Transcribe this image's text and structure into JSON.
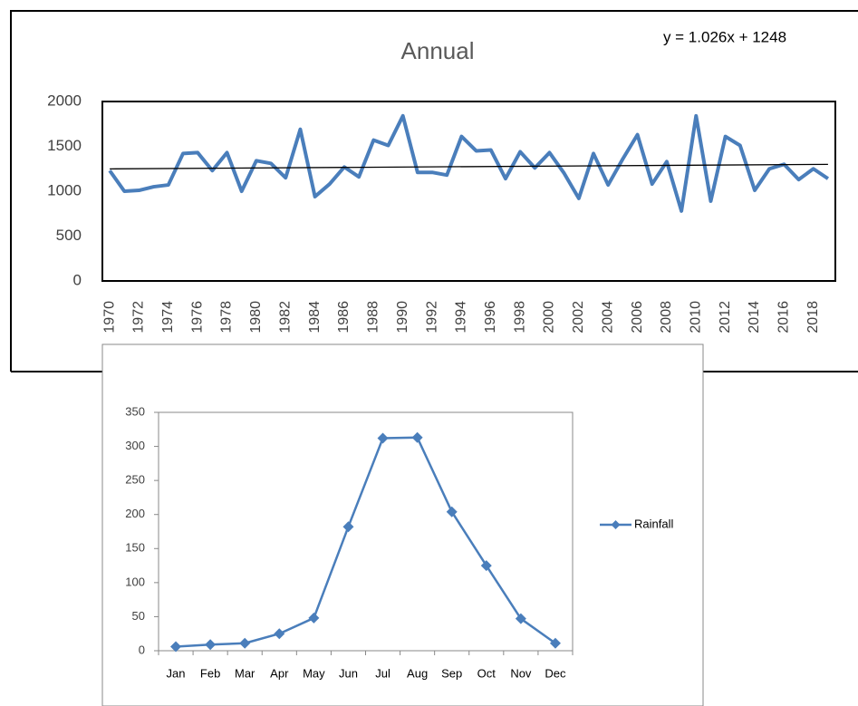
{
  "chart_data": [
    {
      "type": "line",
      "title": "Annual",
      "categories": [
        "1970",
        null,
        "1972",
        null,
        "1974",
        null,
        "1976",
        null,
        "1978",
        null,
        "1980",
        null,
        "1982",
        null,
        "1984",
        null,
        "1986",
        null,
        "1988",
        null,
        "1990",
        null,
        "1992",
        null,
        "1994",
        null,
        "1996",
        null,
        "1998",
        null,
        "2000",
        null,
        "2002",
        null,
        "2004",
        null,
        "2006",
        null,
        "2008",
        null,
        "2010",
        null,
        "2012",
        null,
        "2014",
        null,
        "2016",
        null,
        "2018",
        null
      ],
      "series": [
        {
          "color": "#4a7ebb",
          "values": [
            1230,
            1000,
            1010,
            1050,
            1070,
            1420,
            1430,
            1230,
            1430,
            1000,
            1340,
            1310,
            1150,
            1690,
            940,
            1080,
            1270,
            1160,
            1570,
            1510,
            1840,
            1210,
            1210,
            1180,
            1610,
            1450,
            1460,
            1140,
            1440,
            1260,
            1430,
            1200,
            920,
            1420,
            1070,
            1360,
            1630,
            1080,
            1330,
            780,
            1840,
            890,
            1610,
            1510,
            1010,
            1250,
            1300,
            1130,
            1250,
            1140
          ]
        }
      ],
      "trendline": {
        "label": "y = 1.026x + 1248",
        "slope": 1.026,
        "intercept": 1248,
        "color": "#000000"
      },
      "ylim": [
        0,
        2000
      ],
      "yticks": [
        0,
        500,
        1000,
        1500,
        2000
      ],
      "grid": false,
      "rotate_x_labels": true
    },
    {
      "type": "line",
      "categories": [
        "Jan",
        "Feb",
        "Mar",
        "Apr",
        "May",
        "Jun",
        "Jul",
        "Aug",
        "Sep",
        "Oct",
        "Nov",
        "Dec"
      ],
      "series": [
        {
          "name": "Rainfall",
          "color": "#4a7ebb",
          "values": [
            6,
            9,
            11,
            25,
            48,
            182,
            312,
            313,
            204,
            125,
            47,
            11
          ]
        }
      ],
      "markers": "diamond",
      "legend": "right",
      "ylim": [
        0,
        350
      ],
      "yticks": [
        0,
        50,
        100,
        150,
        200,
        250,
        300,
        350
      ],
      "grid": false
    }
  ]
}
